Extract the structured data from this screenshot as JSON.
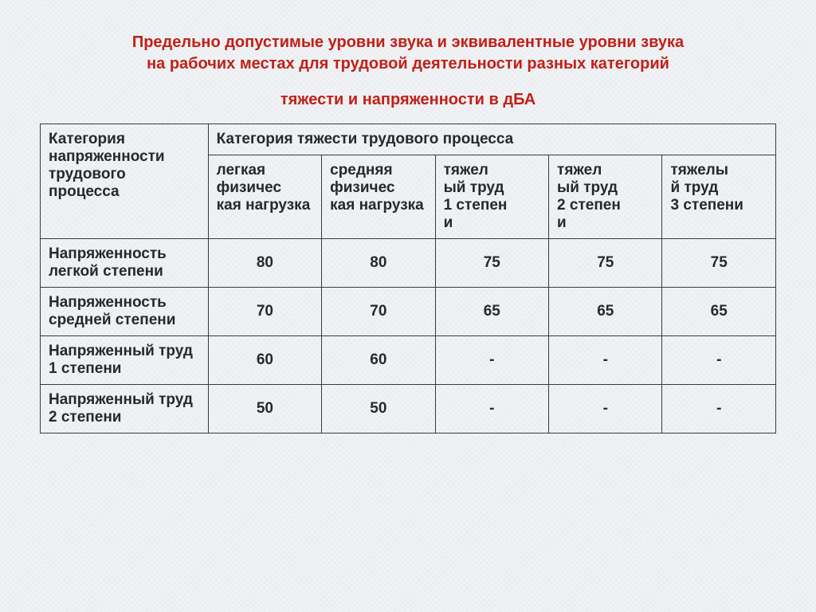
{
  "title": {
    "line1": "Предельно допустимые уровни звука и эквивалентные уровни звука",
    "line2": "на рабочих местах для трудовой деятельности разных категорий",
    "line3": "тяжести и напряженности в дБА",
    "color": "#c02018"
  },
  "table": {
    "text_color": "#272829",
    "border_color": "#3a3a3a",
    "row_header_title": "Категория напряженности трудового процесса",
    "group_header": "Категория тяжести трудового процесса",
    "columns": [
      "легкая физичес\nкая нагрузка",
      "средняя физичес\nкая нагрузка",
      "тяжел\nый труд\n1 степен\nи",
      "тяжел\nый труд\n2 степен\nи",
      "тяжелы\nй труд\n3 степени"
    ],
    "rows": [
      {
        "label": "Напряженность легкой степени",
        "values": [
          "80",
          "80",
          "75",
          "75",
          "75"
        ]
      },
      {
        "label": "Напряженность средней степени",
        "values": [
          "70",
          "70",
          "65",
          "65",
          "65"
        ]
      },
      {
        "label": "Напряженный труд 1 степени",
        "values": [
          "60",
          "60",
          "-",
          "-",
          "-"
        ]
      },
      {
        "label": "Напряженный труд 2 степени",
        "values": [
          "50",
          "50",
          "-",
          "-",
          "-"
        ]
      }
    ]
  }
}
